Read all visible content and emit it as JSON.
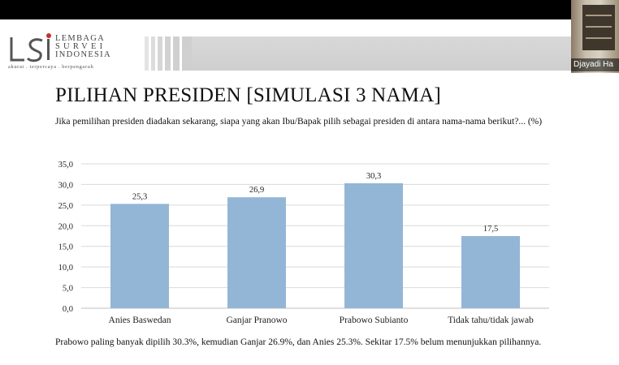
{
  "logo": {
    "line1": "LEMBAGA",
    "line2": "SURVEI",
    "line3": "INDONESIA",
    "tagline": "akurat . terpercaya . berpengaruh"
  },
  "video": {
    "participant_name": "Djayadi Ha"
  },
  "slide": {
    "title": "PILIHAN PRESIDEN [SIMULASI 3 NAMA]",
    "question": "Jika pemilihan presiden diadakan sekarang, siapa yang akan Ibu/Bapak pilih sebagai presiden di antara nama-nama berikut?... (%)",
    "footnote": "Prabowo paling banyak dipilih 30.3%, kemudian Ganjar 26.9%, dan Anies 25.3%. Sekitar 17.5% belum menunjukkan pilihannya."
  },
  "colors": {
    "bar": "#94b6d6",
    "grid": "#d9d9d9",
    "axis": "#bfbfbf"
  },
  "chart_data": {
    "type": "bar",
    "categories": [
      "Anies Baswedan",
      "Ganjar Pranowo",
      "Prabowo Subianto",
      "Tidak tahu/tidak jawab"
    ],
    "values": [
      25.3,
      26.9,
      30.3,
      17.5
    ],
    "value_labels": [
      "25,3",
      "26,9",
      "30,3",
      "17,5"
    ],
    "ylim": [
      0,
      35
    ],
    "yticks": [
      0,
      5,
      10,
      15,
      20,
      25,
      30,
      35
    ],
    "ytick_labels": [
      "0,0",
      "5,0",
      "10,0",
      "15,0",
      "20,0",
      "25,0",
      "30,0",
      "35,0"
    ],
    "grid": true,
    "legend": "none"
  }
}
